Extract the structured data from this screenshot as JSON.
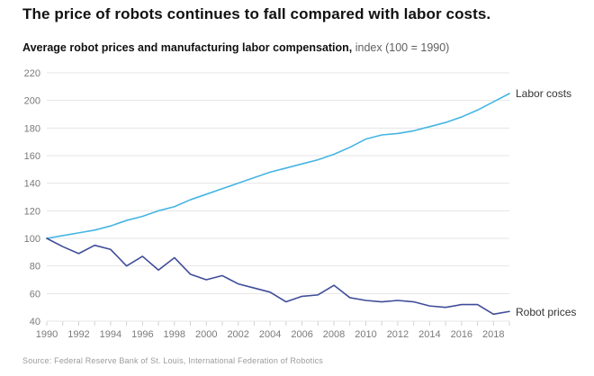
{
  "header": {
    "title": "The price of robots continues to fall compared with labor costs.",
    "subtitle_bold": "Average robot prices and manufacturing labor compensation,",
    "subtitle_note": " index (100 = 1990)"
  },
  "footer": {
    "source": "Source: Federal Reserve Bank of St. Louis, International Federation of Robotics"
  },
  "colors": {
    "background": "#ffffff",
    "title_text": "#111111",
    "note_text": "#5f5f5f",
    "axis_text": "#7a7a7a",
    "grid": "#e4e4e4",
    "tick": "#d0d0d0",
    "labor": "#45b5e3",
    "robot": "#3f4d99",
    "source_text": "#9b9b9b"
  },
  "chart_data": {
    "type": "line",
    "title": "The price of robots continues to fall compared with labor costs.",
    "subtitle": "Average robot prices and manufacturing labor compensation, index (100 = 1990)",
    "xlabel": "",
    "ylabel": "",
    "xlim": [
      1990,
      2019
    ],
    "ylim": [
      40,
      220
    ],
    "grid": "horizontal",
    "legend_position": "line-end-labels",
    "x": [
      1990,
      1991,
      1992,
      1993,
      1994,
      1995,
      1996,
      1997,
      1998,
      1999,
      2000,
      2001,
      2002,
      2003,
      2004,
      2005,
      2006,
      2007,
      2008,
      2009,
      2010,
      2011,
      2012,
      2013,
      2014,
      2015,
      2016,
      2017,
      2018,
      2019
    ],
    "x_tick_labels": [
      "1990",
      "1992",
      "1994",
      "1996",
      "1998",
      "2000",
      "2002",
      "2004",
      "2006",
      "2008",
      "2010",
      "2012",
      "2014",
      "2016",
      "2018"
    ],
    "y_ticks": [
      40,
      60,
      80,
      100,
      120,
      140,
      160,
      180,
      200,
      220
    ],
    "series": [
      {
        "name": "Labor costs",
        "color_key": "labor",
        "values": [
          100,
          102,
          104,
          106,
          109,
          113,
          116,
          120,
          123,
          128,
          132,
          136,
          140,
          144,
          148,
          151,
          154,
          157,
          161,
          166,
          172,
          175,
          176,
          178,
          181,
          184,
          188,
          193,
          199,
          205
        ]
      },
      {
        "name": "Robot prices",
        "color_key": "robot",
        "values": [
          100,
          94,
          89,
          95,
          92,
          80,
          87,
          77,
          86,
          74,
          70,
          73,
          67,
          64,
          61,
          54,
          58,
          59,
          66,
          57,
          55,
          54,
          55,
          54,
          51,
          50,
          52,
          52,
          45,
          47
        ]
      }
    ]
  }
}
